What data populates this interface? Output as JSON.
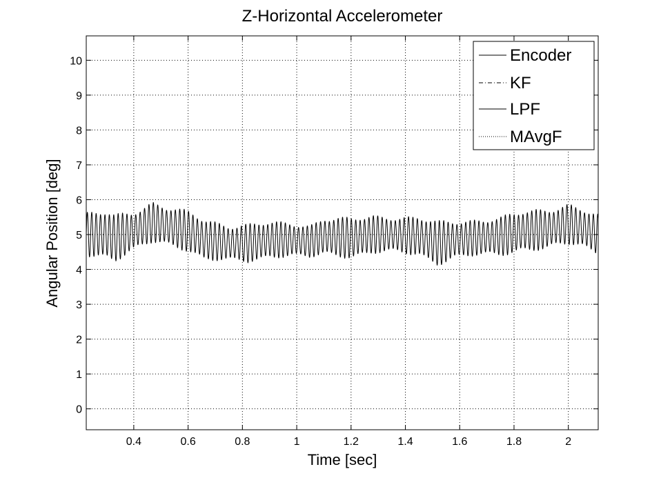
{
  "chart_data": {
    "type": "line",
    "title": "Z-Horizontal Accelerometer",
    "xlabel": "Time [sec]",
    "ylabel": "Angular Position [deg]",
    "xlim": [
      0.225,
      2.11
    ],
    "ylim": [
      -0.6,
      10.7
    ],
    "xticks": [
      0.4,
      0.6,
      0.8,
      1,
      1.2,
      1.4,
      1.6,
      1.8,
      2
    ],
    "xtick_labels": [
      "0.4",
      "0.6",
      "0.8",
      "1",
      "1.2",
      "1.4",
      "1.6",
      "1.8",
      "2"
    ],
    "yticks": [
      0,
      1,
      2,
      3,
      4,
      5,
      6,
      7,
      8,
      9,
      10
    ],
    "ytick_labels": [
      "0",
      "1",
      "2",
      "3",
      "4",
      "5",
      "6",
      "7",
      "8",
      "9",
      "10"
    ],
    "grid": true,
    "legend_position": "top-right",
    "legend": [
      {
        "name": "Encoder",
        "style": "solid"
      },
      {
        "name": "KF",
        "style": "dashdot"
      },
      {
        "name": "LPF",
        "style": "solid"
      },
      {
        "name": "MAvgF",
        "style": "dotted"
      }
    ],
    "signal": {
      "name": "Encoder",
      "x_start": 0.225,
      "x_end": 2.11,
      "oscillation_period_sec": 0.0162,
      "envelope_t": [
        0.225,
        0.3,
        0.33,
        0.4,
        0.47,
        0.52,
        0.6,
        0.66,
        0.75,
        0.82,
        0.9,
        0.98,
        1.05,
        1.1,
        1.2,
        1.28,
        1.35,
        1.45,
        1.52,
        1.58,
        1.65,
        1.75,
        1.83,
        1.92,
        2.0,
        2.05,
        2.11
      ],
      "envelope_mid": [
        5.0,
        5.0,
        4.9,
        5.1,
        5.35,
        5.25,
        5.1,
        4.85,
        4.75,
        4.75,
        4.85,
        4.85,
        4.8,
        4.95,
        4.9,
        5.0,
        5.0,
        4.95,
        4.75,
        4.85,
        4.9,
        4.95,
        5.1,
        5.15,
        5.3,
        5.2,
        5.0
      ],
      "envelope_amp": [
        0.55,
        0.6,
        0.6,
        0.55,
        0.55,
        0.5,
        0.5,
        0.55,
        0.5,
        0.5,
        0.45,
        0.45,
        0.45,
        0.5,
        0.5,
        0.5,
        0.5,
        0.5,
        0.55,
        0.5,
        0.5,
        0.5,
        0.5,
        0.55,
        0.55,
        0.5,
        0.5
      ]
    }
  }
}
